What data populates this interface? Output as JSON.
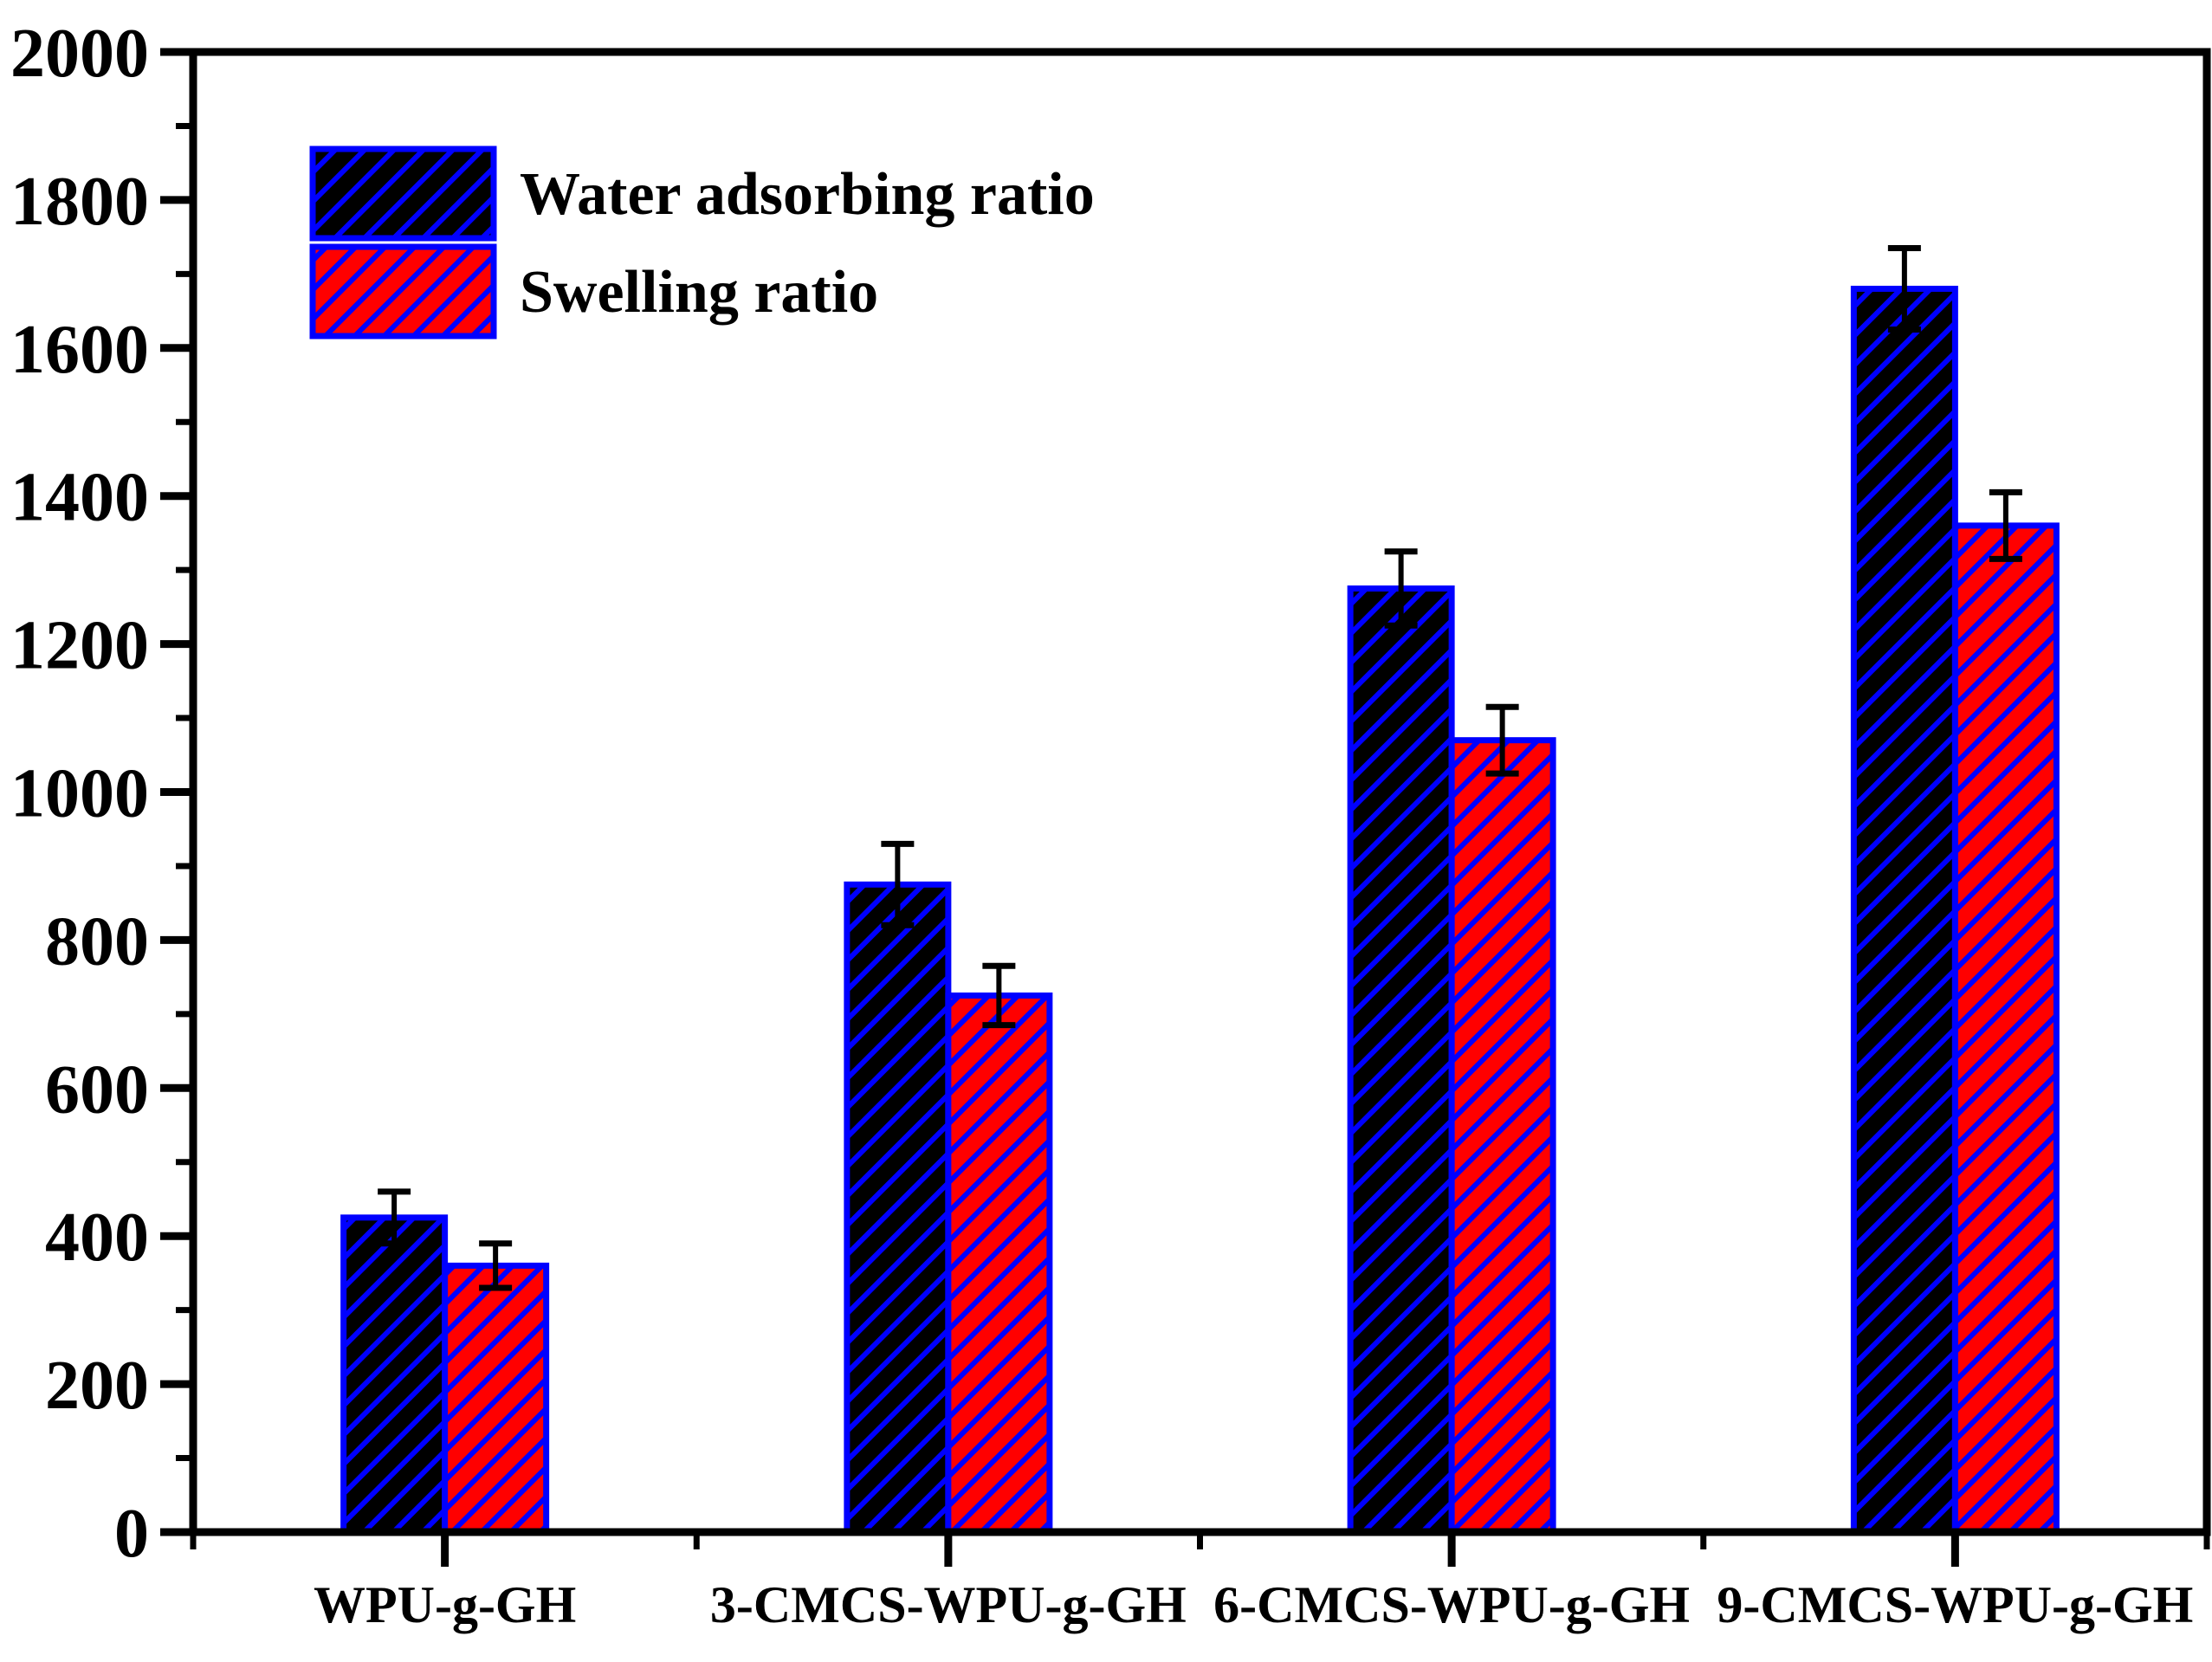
{
  "figure": {
    "background": "#ffffff"
  },
  "legend": {
    "position": "top-left",
    "items": [
      {
        "label": "Water adsorbing ratio",
        "swatch": "black-fill-blue-hatch"
      },
      {
        "label": "Swelling ratio",
        "swatch": "red-fill-blue-hatch"
      }
    ]
  },
  "chart_data": {
    "type": "bar",
    "title": "",
    "xlabel": "",
    "ylabel": "",
    "categories": [
      "WPU-g-GH",
      "3-CMCS-WPU-g-GH",
      "6-CMCS-WPU-g-GH",
      "9-CMCS-WPU-g-GH"
    ],
    "series": [
      {
        "name": "Water adsorbing ratio",
        "values": [
          425,
          875,
          1275,
          1680
        ],
        "errors": [
          35,
          55,
          50,
          55
        ],
        "fill": "#000000",
        "hatch_color": "#0000ff",
        "outline": "#0000ff"
      },
      {
        "name": "Swelling ratio",
        "values": [
          360,
          725,
          1070,
          1360
        ],
        "errors": [
          30,
          40,
          45,
          45
        ],
        "fill": "#ff0000",
        "hatch_color": "#0000ff",
        "outline": "#0000ff"
      }
    ],
    "ylim": [
      0,
      2000
    ],
    "y_major_step": 200,
    "y_minor_step": 100,
    "y_tick_labels": [
      "0",
      "200",
      "400",
      "600",
      "800",
      "1000",
      "1200",
      "1400",
      "1600",
      "1800",
      "2000"
    ],
    "grid": false,
    "legend_position": "top-left",
    "hatch_direction": "forward-diagonal",
    "error_bar_color": "#000000",
    "axis_color": "#000000"
  }
}
